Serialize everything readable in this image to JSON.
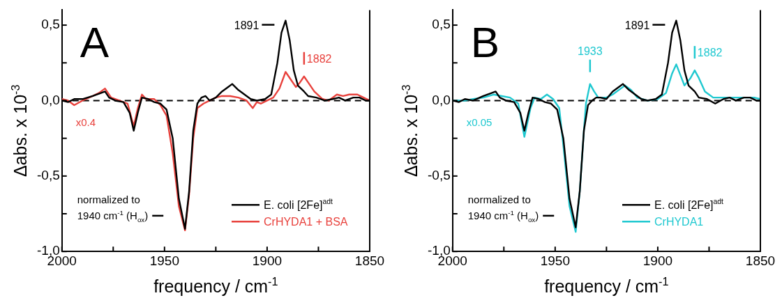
{
  "chart_data": [
    {
      "type": "line",
      "title": "A",
      "xlabel": "frequency / cm$^{-1}$",
      "ylabel": "Δabs. x 10$^{-3}$",
      "xlim": [
        2000,
        1850
      ],
      "ylim": [
        -1.0,
        0.6
      ],
      "xticks": [
        2000,
        {
          "value": 1975,
          "label": null
        },
        1950,
        {
          "value": 1925,
          "label": null
        },
        1900,
        {
          "value": 1875,
          "label": null
        },
        1850
      ],
      "yticks": [
        {
          "value": -1.0,
          "label": "-1,0"
        },
        {
          "value": -0.75,
          "label": null
        },
        {
          "value": -0.5,
          "label": "-0,5"
        },
        {
          "value": -0.25,
          "label": null
        },
        {
          "value": 0,
          "label": "0,0"
        },
        {
          "value": 0.25,
          "label": null
        },
        {
          "value": 0.5,
          "label": "0,5"
        }
      ],
      "grid": false,
      "legend": "bottom right",
      "ref_lines": [
        {
          "axis": "y",
          "value": 0,
          "color": "#000000",
          "line_style": "dashed"
        }
      ],
      "annotations": [
        "x0.4",
        "normalized to\n1940 cm$^{-1}$ (H$_{ox}$)",
        {
          "text": "1891",
          "x": 1891,
          "y": 0.53
        },
        {
          "text": "1882",
          "x": 1882,
          "y": 0.16
        }
      ],
      "series": [
        {
          "name": "E. coli [2Fe]$^{adt}$",
          "color": "#000000",
          "x": [
            2000,
            1997,
            1994,
            1990,
            1985,
            1981,
            1979,
            1977,
            1974,
            1970,
            1967,
            1965,
            1963,
            1961,
            1958,
            1955,
            1952,
            1949,
            1946,
            1943,
            1940,
            1938,
            1936,
            1934,
            1932,
            1930,
            1928,
            1925,
            1922,
            1919,
            1917,
            1914,
            1911,
            1908,
            1905,
            1901,
            1898,
            1895,
            1893,
            1891,
            1889,
            1887,
            1885,
            1882,
            1880,
            1876,
            1872,
            1868,
            1865,
            1862,
            1858,
            1855,
            1852,
            1850
          ],
          "values": [
            0.0,
            -0.01,
            0.01,
            0.01,
            0.03,
            0.05,
            0.06,
            0.02,
            0.0,
            -0.01,
            -0.08,
            -0.2,
            -0.08,
            0.02,
            0.01,
            -0.01,
            -0.02,
            -0.06,
            -0.25,
            -0.65,
            -0.85,
            -0.6,
            -0.2,
            -0.02,
            0.02,
            0.03,
            0.0,
            0.02,
            0.06,
            0.09,
            0.11,
            0.07,
            0.04,
            0.01,
            0.0,
            0.01,
            0.04,
            0.25,
            0.45,
            0.53,
            0.4,
            0.2,
            0.1,
            0.06,
            0.03,
            0.02,
            0.0,
            0.01,
            0.02,
            0.0,
            0.02,
            0.02,
            0.0,
            0.0
          ]
        },
        {
          "name": "CrHYDA1 + BSA",
          "color": "#e8413c",
          "x": [
            2000,
            1997,
            1994,
            1990,
            1985,
            1982,
            1979,
            1976,
            1972,
            1968,
            1965,
            1963,
            1961,
            1959,
            1955,
            1952,
            1949,
            1946,
            1943,
            1940,
            1938,
            1936,
            1934,
            1931,
            1928,
            1925,
            1922,
            1918,
            1914,
            1910,
            1907,
            1905,
            1903,
            1900,
            1897,
            1894,
            1891,
            1888,
            1886,
            1884,
            1882,
            1880,
            1877,
            1873,
            1870,
            1866,
            1863,
            1860,
            1856,
            1853,
            1850
          ],
          "values": [
            0.01,
            0.0,
            -0.03,
            0.0,
            0.03,
            0.05,
            0.08,
            0.02,
            0.0,
            -0.02,
            -0.17,
            -0.05,
            0.04,
            0.01,
            0.01,
            -0.03,
            -0.1,
            -0.35,
            -0.7,
            -0.86,
            -0.62,
            -0.25,
            -0.05,
            -0.02,
            0.0,
            0.02,
            0.03,
            0.03,
            0.02,
            0.0,
            -0.05,
            -0.01,
            -0.02,
            0.0,
            0.02,
            0.08,
            0.19,
            0.13,
            0.09,
            0.12,
            0.16,
            0.12,
            0.06,
            0.01,
            0.0,
            0.04,
            0.03,
            0.04,
            0.04,
            0.02,
            0.0
          ]
        }
      ]
    },
    {
      "type": "line",
      "title": "B",
      "xlabel": "frequency / cm$^{-1}$",
      "ylabel": "Δabs. x 10$^{-3}$",
      "xlim": [
        2000,
        1850
      ],
      "ylim": [
        -1.0,
        0.6
      ],
      "xticks": [
        2000,
        {
          "value": 1975,
          "label": null
        },
        1950,
        {
          "value": 1925,
          "label": null
        },
        1900,
        {
          "value": 1875,
          "label": null
        },
        1850
      ],
      "yticks": [
        {
          "value": -1.0,
          "label": "-1,0"
        },
        {
          "value": -0.75,
          "label": null
        },
        {
          "value": -0.5,
          "label": "-0,5"
        },
        {
          "value": -0.25,
          "label": null
        },
        {
          "value": 0,
          "label": "0,0"
        },
        {
          "value": 0.25,
          "label": null
        },
        {
          "value": 0.5,
          "label": "0,5"
        }
      ],
      "grid": false,
      "legend": "bottom right",
      "ref_lines": [
        {
          "axis": "y",
          "value": 0,
          "color": "#000000",
          "line_style": "dashed"
        }
      ],
      "annotations": [
        "x0.05",
        "normalized to\n1940 cm$^{-1}$ (H$_{ox}$)",
        {
          "text": "1891",
          "x": 1891,
          "y": 0.53
        },
        {
          "text": "1933",
          "x": 1933,
          "y": 0.11
        },
        {
          "text": "1882",
          "x": 1882,
          "y": 0.2
        }
      ],
      "series": [
        {
          "name": "E. coli [2Fe]$^{adt}$",
          "color": "#000000",
          "x": [
            2000,
            1997,
            1994,
            1990,
            1985,
            1981,
            1979,
            1977,
            1974,
            1970,
            1967,
            1965,
            1963,
            1961,
            1958,
            1955,
            1952,
            1949,
            1946,
            1943,
            1940,
            1938,
            1936,
            1934,
            1932,
            1930,
            1928,
            1925,
            1922,
            1919,
            1917,
            1914,
            1911,
            1908,
            1905,
            1901,
            1898,
            1895,
            1893,
            1891,
            1889,
            1887,
            1885,
            1882,
            1880,
            1876,
            1872,
            1868,
            1865,
            1862,
            1858,
            1855,
            1852,
            1850
          ],
          "values": [
            0.0,
            -0.01,
            0.01,
            0.0,
            0.03,
            0.05,
            0.06,
            0.02,
            0.0,
            -0.01,
            -0.08,
            -0.2,
            -0.08,
            0.02,
            0.01,
            -0.01,
            -0.02,
            -0.06,
            -0.25,
            -0.65,
            -0.84,
            -0.6,
            -0.2,
            -0.03,
            0.0,
            0.02,
            0.02,
            0.01,
            0.06,
            0.09,
            0.11,
            0.07,
            0.04,
            0.01,
            0.0,
            0.01,
            0.04,
            0.25,
            0.45,
            0.53,
            0.4,
            0.2,
            0.1,
            0.06,
            0.02,
            0.01,
            -0.02,
            0.01,
            0.02,
            0.0,
            0.02,
            0.02,
            0.0,
            0.0
          ]
        },
        {
          "name": "CrHYDA1",
          "color": "#1fc8d0",
          "x": [
            2000,
            1994,
            1990,
            1985,
            1980,
            1976,
            1972,
            1968,
            1965,
            1962,
            1960,
            1957,
            1954,
            1951,
            1948,
            1946,
            1943,
            1940,
            1938,
            1936,
            1935,
            1933,
            1931,
            1929,
            1925,
            1922,
            1918,
            1916,
            1913,
            1910,
            1905,
            1900,
            1896,
            1893,
            1891,
            1889,
            1887,
            1884,
            1882,
            1880,
            1877,
            1873,
            1868,
            1863,
            1858,
            1853,
            1850
          ],
          "values": [
            0.0,
            0.0,
            0.01,
            0.02,
            0.04,
            0.03,
            0.02,
            -0.02,
            -0.24,
            -0.05,
            0.02,
            0.01,
            0.04,
            0.01,
            -0.05,
            -0.3,
            -0.7,
            -0.87,
            -0.6,
            -0.2,
            -0.02,
            0.11,
            0.06,
            0.02,
            0.02,
            0.04,
            0.08,
            0.1,
            0.07,
            0.02,
            0.0,
            0.01,
            0.05,
            0.18,
            0.24,
            0.17,
            0.1,
            0.15,
            0.2,
            0.15,
            0.06,
            0.02,
            0.02,
            0.02,
            0.02,
            0.02,
            0.01
          ]
        }
      ]
    }
  ]
}
